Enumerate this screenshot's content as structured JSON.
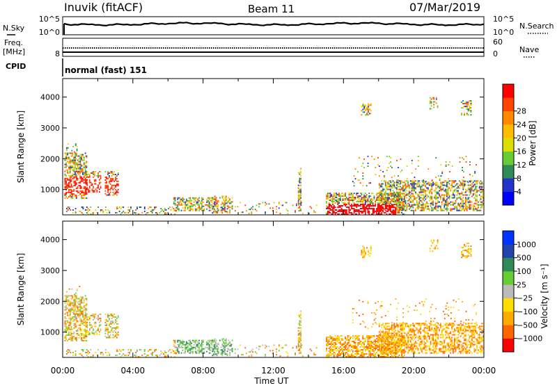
{
  "header": {
    "station": "Inuvik (fitACF)",
    "beam": "Beam 11",
    "date": "07/Mar/2019"
  },
  "nsky_panel": {
    "left_label": "N.Sky",
    "right_label": "N.Search",
    "left_ticks": [
      "10^5",
      "10^0"
    ],
    "right_ticks": [
      "10^5",
      "10^0"
    ]
  },
  "freq_panel": {
    "left_label_1": "Freq.",
    "left_label_2": "[MHz]",
    "right_label": "Nave",
    "left_ticks": [
      "8"
    ],
    "right_ticks": [
      "60",
      "0"
    ]
  },
  "cpid": {
    "label": "CPID",
    "value": "normal (fast) 151"
  },
  "chart_data": [
    {
      "type": "heatmap",
      "quantity": "Power",
      "ylabel": "Slant Range [km]",
      "yticks": [
        "1000",
        "2000",
        "3000",
        "4000"
      ],
      "ylim": [
        180,
        4600
      ],
      "colorbar_label": "Power [dB]",
      "colorbar_ticks": [
        "4",
        "8",
        "12",
        "16",
        "20",
        "24",
        "28"
      ],
      "colorbar_colors": [
        "#0000ff",
        "#2233cc",
        "#2e8b57",
        "#66cc33",
        "#dddd00",
        "#ffbb00",
        "#ff8800",
        "#ff4400",
        "#ff0000"
      ],
      "xlim": [
        "00:00",
        "24:00"
      ]
    },
    {
      "type": "heatmap",
      "quantity": "Velocity",
      "ylabel": "Slant Range [km]",
      "yticks": [
        "1000",
        "2000",
        "3000",
        "4000"
      ],
      "ylim": [
        180,
        4600
      ],
      "colorbar_label": "Velocity [m s⁻¹]",
      "colorbar_ticks": [
        "1000",
        "500",
        "100",
        "25",
        "−25",
        "−100",
        "−500",
        "−1000"
      ],
      "colorbar_colors": [
        "#0033ff",
        "#2244aa",
        "#2e8b57",
        "#66cc33",
        "#bbbbbb",
        "#ffdd00",
        "#ffaa00",
        "#ff6600",
        "#ff0000"
      ],
      "xlim": [
        "00:00",
        "24:00"
      ]
    }
  ],
  "x_axis": {
    "ticks": [
      "00:00",
      "04:00",
      "08:00",
      "12:00",
      "16:00",
      "20:00",
      "00:00"
    ],
    "label": "Time UT"
  }
}
